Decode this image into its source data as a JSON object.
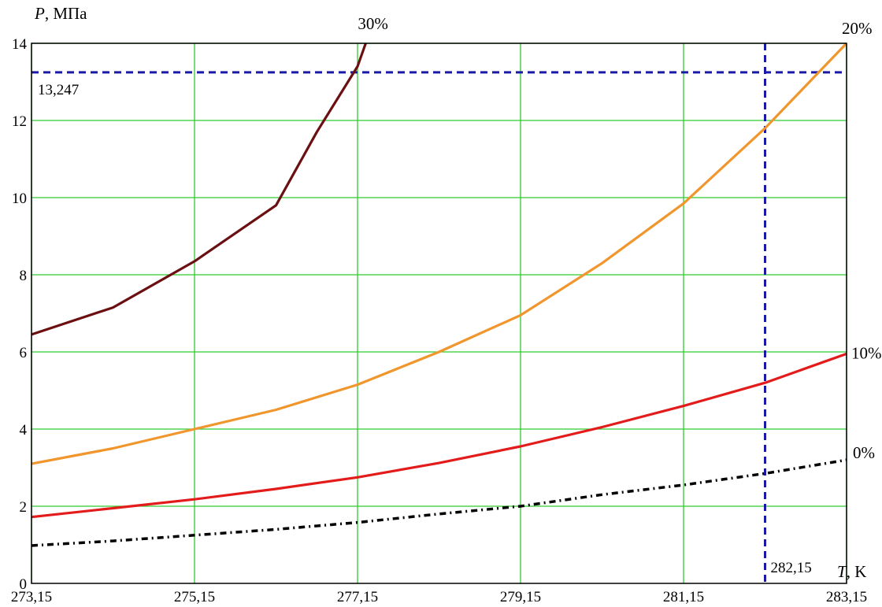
{
  "chart_data": {
    "type": "line",
    "xlabel_var": "T",
    "xlabel_unit": ", K",
    "ylabel_var": "P",
    "ylabel_unit": ", МПа",
    "xlim": [
      273.15,
      283.15
    ],
    "ylim": [
      0,
      14
    ],
    "x_ticks": [
      "273,15",
      "275,15",
      "277,15",
      "279,15",
      "281,15",
      "283,15"
    ],
    "x_tick_values": [
      273.15,
      275.15,
      277.15,
      279.15,
      281.15,
      283.15
    ],
    "y_ticks": [
      "0",
      "2",
      "4",
      "6",
      "8",
      "10",
      "12",
      "14"
    ],
    "y_tick_values": [
      0,
      2,
      4,
      6,
      8,
      10,
      12,
      14
    ],
    "grid": true,
    "grid_x_values": [
      273.15,
      275.15,
      277.15,
      279.15,
      281.15,
      283.15
    ],
    "grid_y_values": [
      2,
      4,
      6,
      8,
      10,
      12,
      14
    ],
    "series": [
      {
        "name": "30%",
        "color": "#6b0f12",
        "style": "solid",
        "x": [
          273.15,
          274.15,
          275.15,
          276.15,
          276.65,
          277.15,
          277.25
        ],
        "y": [
          6.45,
          7.15,
          8.35,
          9.8,
          11.7,
          13.4,
          14.0
        ]
      },
      {
        "name": "20%",
        "color": "#f0962c",
        "style": "solid",
        "x": [
          273.15,
          274.15,
          275.15,
          276.15,
          277.15,
          278.15,
          279.15,
          280.15,
          281.15,
          282.15,
          283.15
        ],
        "y": [
          3.1,
          3.5,
          4.0,
          4.5,
          5.15,
          6.0,
          6.95,
          8.3,
          9.85,
          11.8,
          14.0
        ]
      },
      {
        "name": "10%",
        "color": "#e41b1b",
        "style": "solid",
        "x": [
          273.15,
          274.15,
          275.15,
          276.15,
          277.15,
          278.15,
          279.15,
          280.15,
          281.15,
          282.15,
          283.15
        ],
        "y": [
          1.72,
          1.95,
          2.18,
          2.45,
          2.75,
          3.12,
          3.55,
          4.05,
          4.6,
          5.2,
          5.95
        ]
      },
      {
        "name": "0%",
        "color": "#000000",
        "style": "dashdot",
        "x": [
          273.15,
          274.15,
          275.15,
          276.15,
          277.15,
          278.15,
          279.15,
          280.15,
          281.15,
          282.15,
          283.15
        ],
        "y": [
          0.98,
          1.1,
          1.25,
          1.4,
          1.58,
          1.8,
          2.0,
          2.3,
          2.55,
          2.85,
          3.2
        ]
      }
    ],
    "reference_lines": [
      {
        "orientation": "horizontal",
        "value": 13.247,
        "label": "13,247",
        "color": "#1a1aa6"
      },
      {
        "orientation": "vertical",
        "value": 282.15,
        "label": "282,15",
        "color": "#1a1aa6"
      }
    ]
  }
}
